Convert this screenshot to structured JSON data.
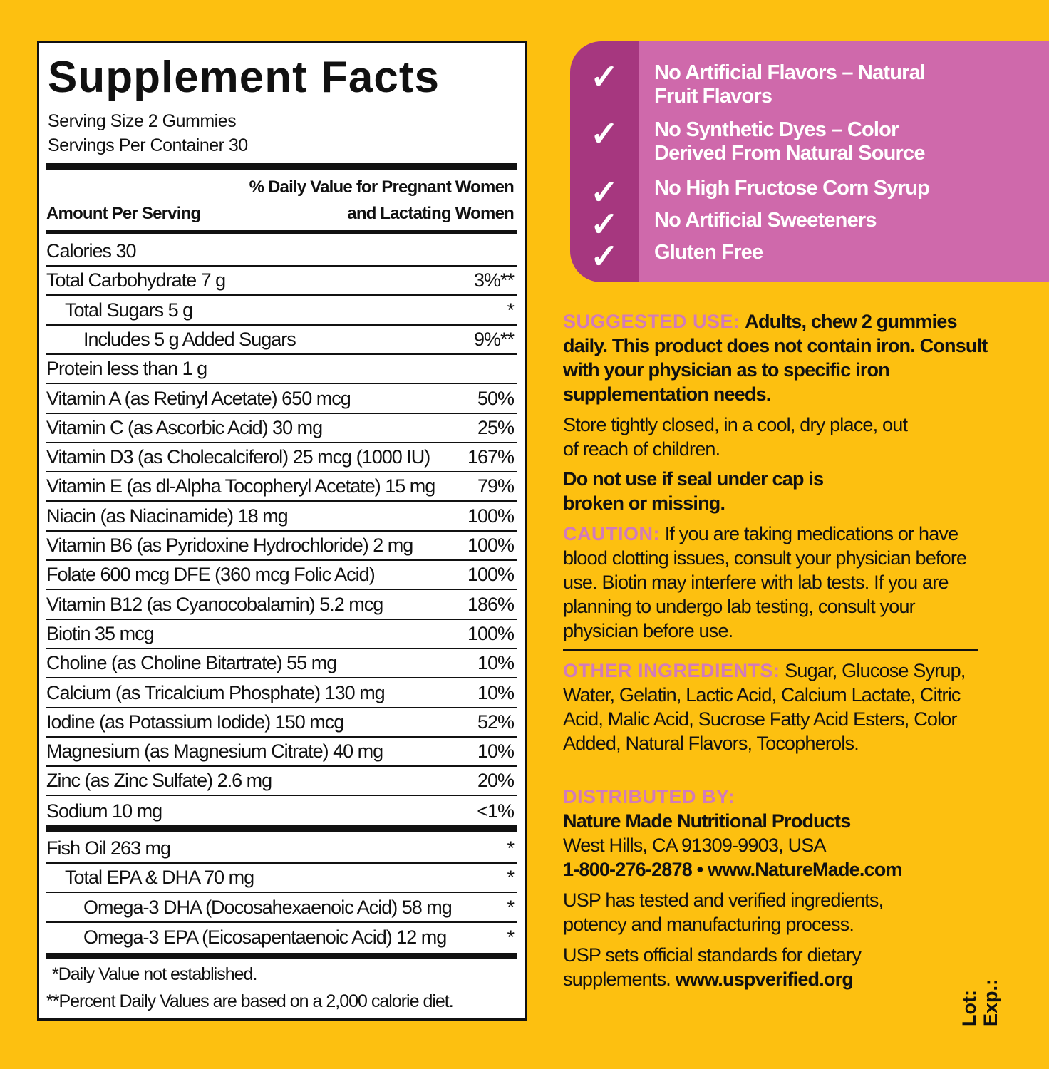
{
  "facts": {
    "title": "Supplement Facts",
    "serving_size": "Serving Size 2 Gummies",
    "servings_per_container": "Servings Per Container 30",
    "dv_header_1": "% Daily Value for Pregnant Women",
    "dv_header_2": "and Lactating Women",
    "amount_header": "Amount Per Serving",
    "rows": [
      {
        "name": "Calories 30",
        "dv": "",
        "indent": 0
      },
      {
        "name": "Total Carbohydrate 7 g",
        "dv": "3%**",
        "indent": 0
      },
      {
        "name": "Total Sugars 5 g",
        "dv": "*",
        "indent": 1
      },
      {
        "name": "Includes 5 g Added Sugars",
        "dv": "9%**",
        "indent": 2
      },
      {
        "name": "Protein less than 1 g",
        "dv": "",
        "indent": 0
      },
      {
        "name": "Vitamin A (as Retinyl Acetate) 650 mcg",
        "dv": "50%",
        "indent": 0
      },
      {
        "name": "Vitamin C (as Ascorbic Acid) 30 mg",
        "dv": "25%",
        "indent": 0
      },
      {
        "name": "Vitamin D3 (as Cholecalciferol) 25 mcg (1000 IU)",
        "dv": "167%",
        "indent": 0
      },
      {
        "name": "Vitamin E (as dl-Alpha Tocopheryl Acetate) 15 mg",
        "dv": "79%",
        "indent": 0
      },
      {
        "name": "Niacin (as Niacinamide) 18 mg",
        "dv": "100%",
        "indent": 0
      },
      {
        "name": "Vitamin B6 (as Pyridoxine Hydrochloride) 2 mg",
        "dv": "100%",
        "indent": 0
      },
      {
        "name": "Folate 600 mcg DFE (360 mcg Folic Acid)",
        "dv": "100%",
        "indent": 0
      },
      {
        "name": "Vitamin B12 (as Cyanocobalamin) 5.2 mcg",
        "dv": "186%",
        "indent": 0
      },
      {
        "name": "Biotin 35 mcg",
        "dv": "100%",
        "indent": 0
      },
      {
        "name": "Choline (as Choline Bitartrate) 55 mg",
        "dv": "10%",
        "indent": 0
      },
      {
        "name": "Calcium (as Tricalcium Phosphate) 130 mg",
        "dv": "10%",
        "indent": 0
      },
      {
        "name": "Iodine (as Potassium Iodide) 150 mcg",
        "dv": "52%",
        "indent": 0
      },
      {
        "name": "Magnesium (as Magnesium Citrate) 40 mg",
        "dv": "10%",
        "indent": 0
      },
      {
        "name": "Zinc (as Zinc Sulfate) 2.6 mg",
        "dv": "20%",
        "indent": 0
      },
      {
        "name": "Sodium 10 mg",
        "dv": "<1%",
        "indent": 0
      }
    ],
    "rows2": [
      {
        "name": "Fish Oil 263 mg",
        "dv": "*",
        "indent": 0
      },
      {
        "name": "Total EPA & DHA 70 mg",
        "dv": "*",
        "indent": 1
      },
      {
        "name": "Omega-3 DHA (Docosahexaenoic Acid) 58 mg",
        "dv": "*",
        "indent": 2
      },
      {
        "name": "Omega-3 EPA (Eicosapentaenoic Acid) 12 mg",
        "dv": "*",
        "indent": 2
      }
    ],
    "footnote_1": "*Daily Value not established.",
    "footnote_2": "**Percent Daily Values are based on a 2,000 calorie diet."
  },
  "claims": [
    "No Artificial Flavors – Natural Fruit Flavors",
    "No Synthetic Dyes – Color Derived From Natural Source",
    "No High Fructose Corn Syrup",
    "No Artificial Sweeteners",
    "Gluten Free"
  ],
  "check_icon": "✓",
  "info": {
    "suggested_label": "SUGGESTED USE:",
    "suggested_text": "Adults, chew 2 gummies daily. This product does not contain iron. Consult with your physician as to specific iron supplementation needs.",
    "store": "Store tightly closed, in a cool, dry place, out of reach of children.",
    "seal": "Do not use if seal under cap is broken or missing.",
    "caution_label": "CAUTION:",
    "caution_text": "If you are taking medications or have blood clotting issues, consult your physician before use. Biotin may interfere with lab tests. If you are planning to undergo lab testing, consult your physician before use.",
    "other_label": "OTHER INGREDIENTS:",
    "other_text": "Sugar, Glucose Syrup, Water, Gelatin, Lactic Acid, Calcium Lactate, Citric Acid, Malic Acid, Sucrose Fatty Acid Esters, Color Added, Natural Flavors, Tocopherols.",
    "dist_label": "DISTRIBUTED BY:",
    "dist_name": "Nature Made Nutritional Products",
    "dist_address": "West Hills, CA 91309-9903, USA",
    "dist_contact": "1-800-276-2878 • www.NatureMade.com",
    "usp_1": "USP has tested and verified ingredients, potency and manufacturing process.",
    "usp_2": "USP sets official standards for dietary supplements.",
    "usp_url": "www.uspverified.org"
  },
  "lot": "Lot:",
  "exp": "Exp.:",
  "colors": {
    "background": "#FDC010",
    "claims_pink": "#CF69AB",
    "claims_purple": "#A6377F",
    "heading_pink": "#D27BBA"
  }
}
